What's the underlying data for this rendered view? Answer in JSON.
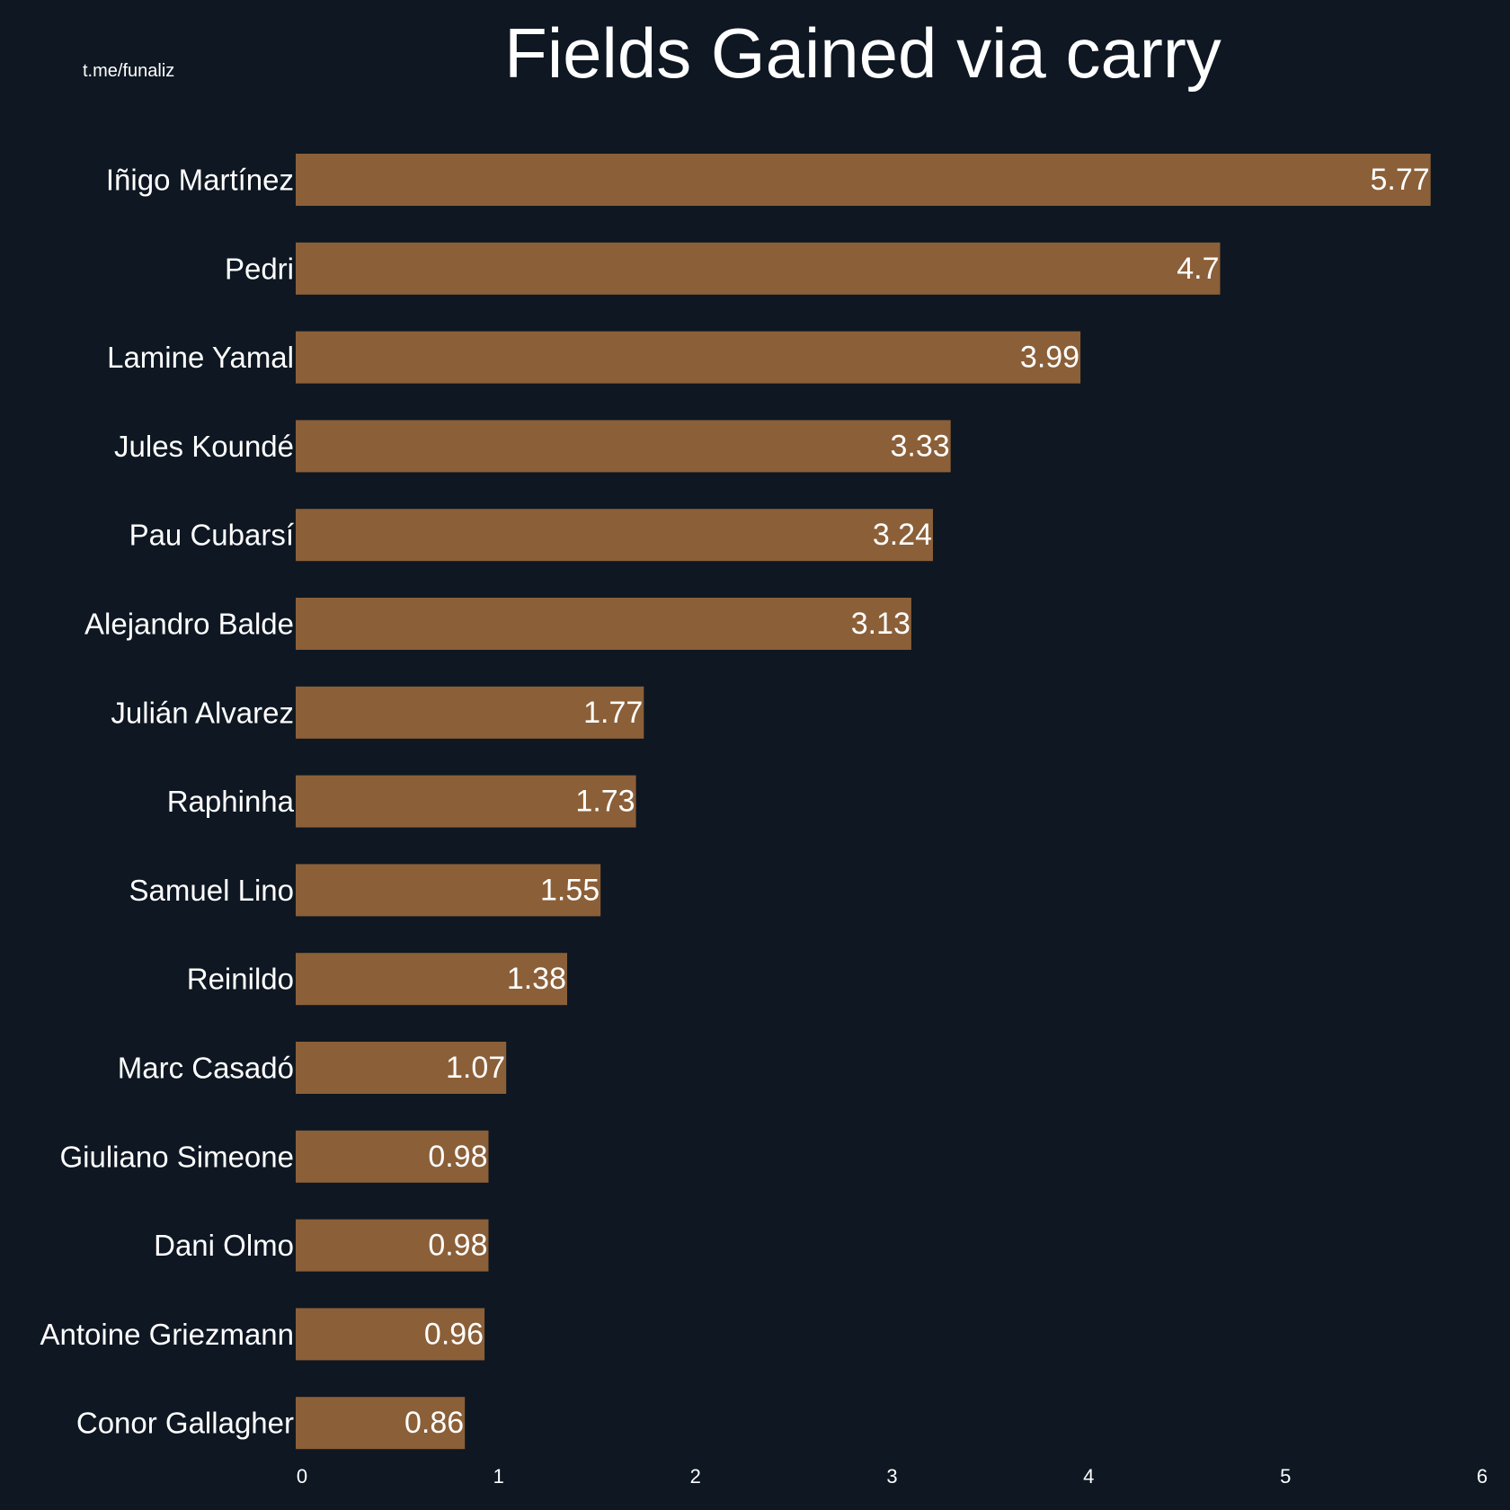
{
  "watermark": "t.me/funaliz",
  "colors": {
    "background": "#0e1722",
    "bar": "#8b5f38",
    "text": "#ffffff"
  },
  "chart_data": {
    "type": "bar",
    "orientation": "horizontal",
    "title": "Fields Gained via carry",
    "xlabel": "",
    "ylabel": "",
    "xlim": [
      0,
      6
    ],
    "xticks": [
      0,
      1,
      2,
      3,
      4,
      5,
      6
    ],
    "grid": false,
    "categories": [
      "Iñigo Martínez",
      "Pedri",
      "Lamine Yamal",
      "Jules Koundé",
      "Pau Cubarsí",
      "Alejandro Balde",
      "Julián Alvarez",
      "Raphinha",
      "Samuel Lino",
      "Reinildo",
      "Marc Casadó",
      "Giuliano Simeone",
      "Dani Olmo",
      "Antoine Griezmann",
      "Conor Gallagher"
    ],
    "values": [
      5.77,
      4.7,
      3.99,
      3.33,
      3.24,
      3.13,
      1.77,
      1.73,
      1.55,
      1.38,
      1.07,
      0.98,
      0.98,
      0.96,
      0.86
    ],
    "data_labels": [
      "5.77",
      "4.7",
      "3.99",
      "3.33",
      "3.24",
      "3.13",
      "1.77",
      "1.73",
      "1.55",
      "1.38",
      "1.07",
      "0.98",
      "0.98",
      "0.96",
      "0.86"
    ]
  }
}
